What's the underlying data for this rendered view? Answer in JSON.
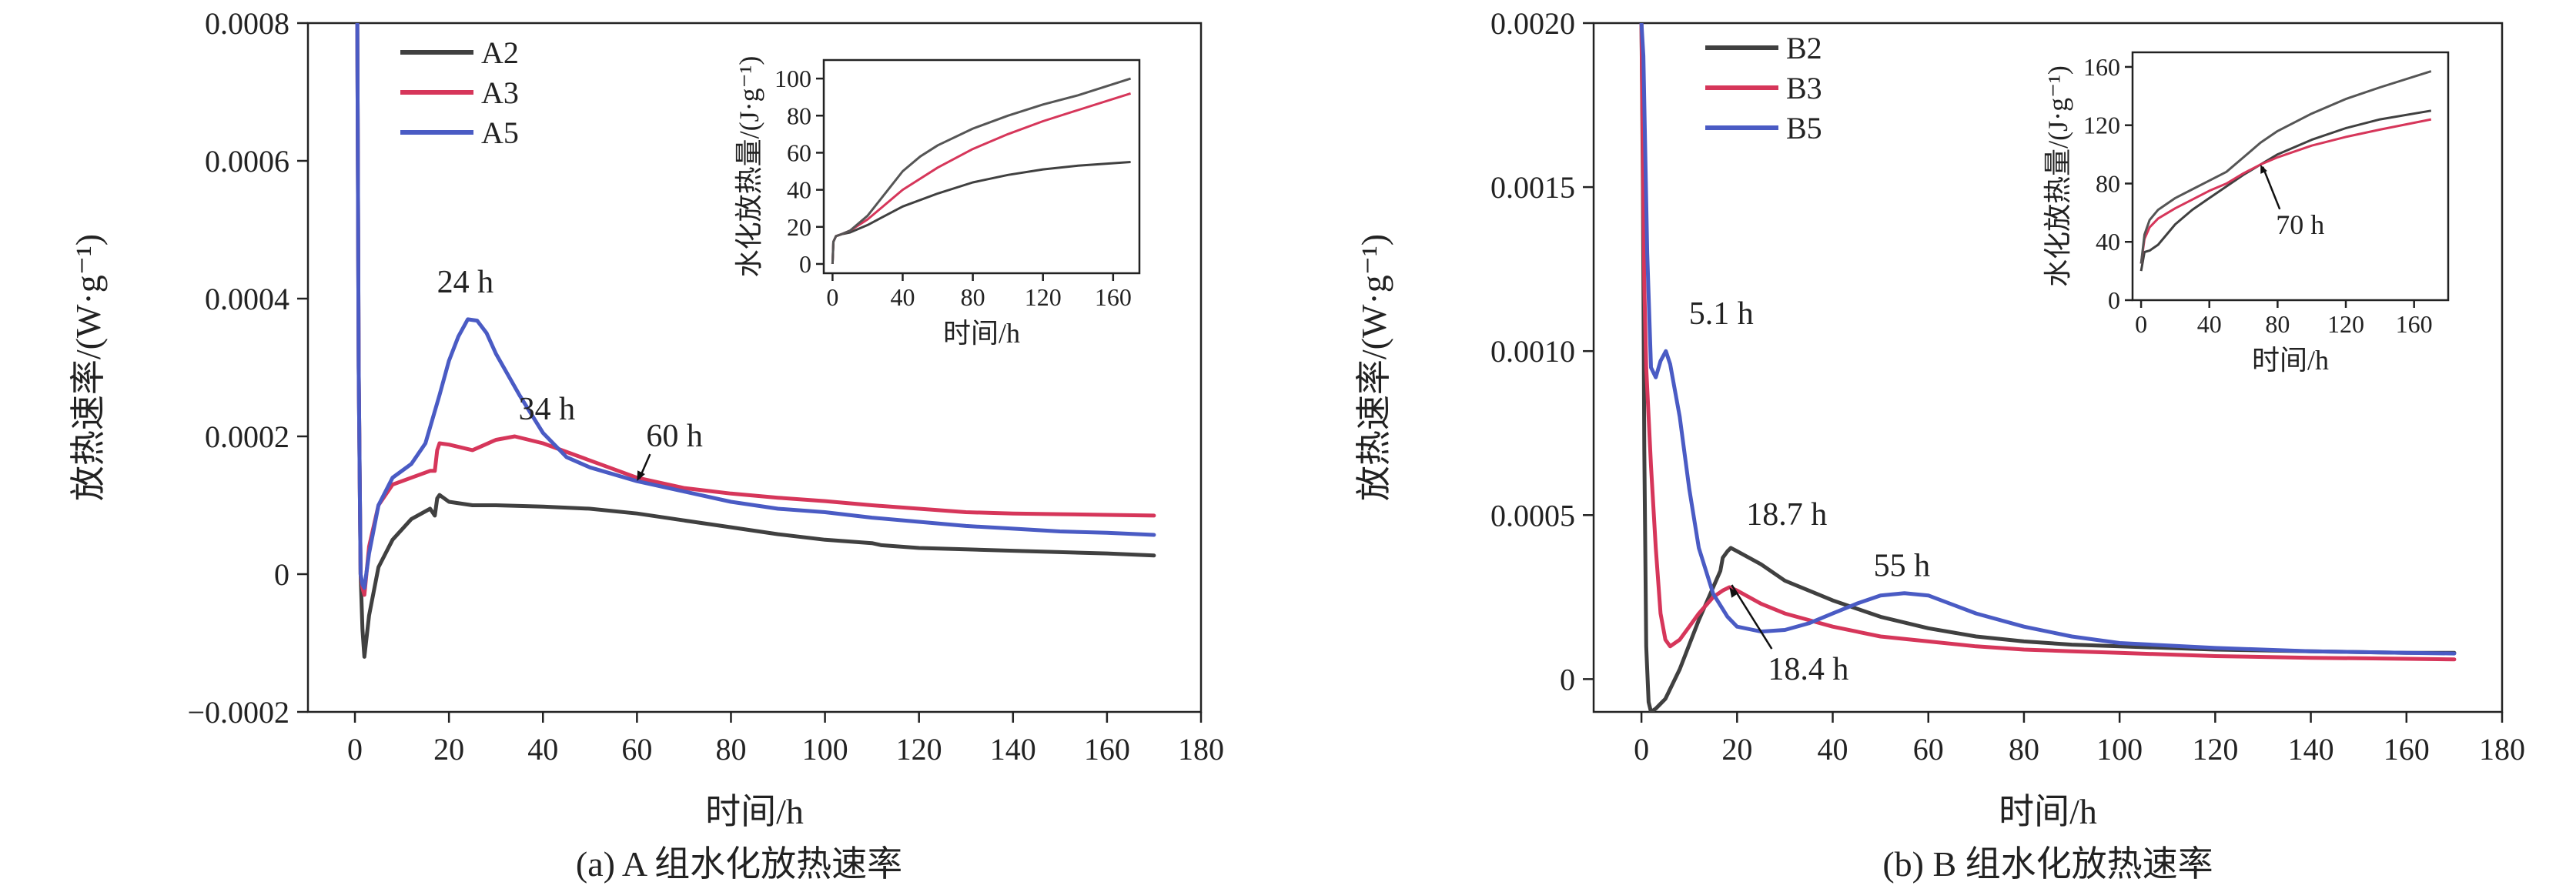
{
  "chart_data": [
    {
      "type": "line",
      "caption": "(a) A 组水化放热速率",
      "xlabel": "时间/h",
      "ylabel": "放热速率/(W·g⁻¹)",
      "xlim": [
        -10,
        180
      ],
      "ylim": [
        -0.0002,
        0.0008
      ],
      "xticks": [
        0,
        20,
        40,
        60,
        80,
        100,
        120,
        140,
        160,
        180
      ],
      "yticks": [
        -0.0002,
        0,
        0.0002,
        0.0004,
        0.0006,
        0.0008
      ],
      "ytick_labels": [
        "−0.0002",
        "0",
        "0.0002",
        "0.0004",
        "0.0006",
        "0.0008"
      ],
      "legend_position": "top-left",
      "series": [
        {
          "name": "A2",
          "color": "#404040",
          "x": [
            0.5,
            0.8,
            1.2,
            1.6,
            2,
            3,
            5,
            8,
            12,
            16,
            17,
            17.5,
            18,
            20,
            25,
            30,
            40,
            50,
            60,
            70,
            80,
            90,
            100,
            110,
            112,
            120,
            130,
            140,
            150,
            160,
            170
          ],
          "y": [
            0.0008,
            0.0003,
            0.0,
            -8e-05,
            -0.00012,
            -6e-05,
            1e-05,
            5e-05,
            8e-05,
            9.5e-05,
            8.5e-05,
            0.00011,
            0.000115,
            0.000105,
            0.0001,
            0.0001,
            9.8e-05,
            9.5e-05,
            8.8e-05,
            7.8e-05,
            6.8e-05,
            5.8e-05,
            5e-05,
            4.5e-05,
            4.2e-05,
            3.8e-05,
            3.6e-05,
            3.4e-05,
            3.2e-05,
            3e-05,
            2.7e-05
          ]
        },
        {
          "name": "A3",
          "color": "#d6365a",
          "x": [
            0.5,
            0.8,
            1.2,
            1.6,
            2,
            3,
            5,
            8,
            12,
            16,
            17,
            17.5,
            18,
            20,
            25,
            30,
            34,
            40,
            50,
            60,
            70,
            80,
            90,
            100,
            110,
            120,
            130,
            140,
            150,
            160,
            170
          ],
          "y": [
            0.0008,
            0.0003,
            0.0,
            -2e-05,
            -3e-05,
            4e-05,
            0.0001,
            0.00013,
            0.00014,
            0.00015,
            0.00015,
            0.00018,
            0.00019,
            0.000188,
            0.00018,
            0.000195,
            0.0002,
            0.00019,
            0.000165,
            0.00014,
            0.000125,
            0.000117,
            0.000111,
            0.000106,
            0.0001,
            9.5e-05,
            9e-05,
            8.8e-05,
            8.7e-05,
            8.6e-05,
            8.5e-05
          ]
        },
        {
          "name": "A5",
          "color": "#4a5bc4",
          "x": [
            0.5,
            0.8,
            1.2,
            1.6,
            2,
            3,
            5,
            8,
            12,
            15,
            18,
            20,
            22,
            24,
            26,
            28,
            30,
            35,
            40,
            45,
            50,
            60,
            70,
            80,
            90,
            100,
            110,
            120,
            130,
            140,
            150,
            160,
            170
          ],
          "y": [
            0.0008,
            0.0003,
            0.0,
            -1.5e-05,
            -2e-05,
            3e-05,
            0.0001,
            0.00014,
            0.00016,
            0.00019,
            0.00026,
            0.00031,
            0.000345,
            0.00037,
            0.000368,
            0.00035,
            0.00032,
            0.00026,
            0.000205,
            0.00017,
            0.000155,
            0.000135,
            0.00012,
            0.000105,
            9.5e-05,
            9e-05,
            8.2e-05,
            7.6e-05,
            7e-05,
            6.6e-05,
            6.2e-05,
            6e-05,
            5.7e-05
          ]
        }
      ],
      "annotations": [
        {
          "text": "24 h",
          "x": 24,
          "y": 0.00037
        },
        {
          "text": "34 h",
          "x": 34,
          "y": 0.0002
        },
        {
          "text": "60 h",
          "x": 60,
          "y": 0.000135
        }
      ],
      "inset": {
        "type": "line",
        "xlabel": "时间/h",
        "ylabel": "水化放热量/(J·g⁻¹)",
        "xlim": [
          -5,
          175
        ],
        "ylim": [
          -5,
          110
        ],
        "xticks": [
          0,
          40,
          80,
          120,
          160
        ],
        "yticks": [
          0,
          20,
          40,
          60,
          80,
          100
        ],
        "series": [
          {
            "name": "A2",
            "color": "#404040",
            "x": [
              0,
              0.5,
              2,
              5,
              10,
              20,
              30,
              40,
              60,
              80,
              100,
              120,
              140,
              170
            ],
            "y": [
              0,
              12,
              15,
              16,
              17,
              21,
              26,
              31,
              38,
              44,
              48,
              51,
              53,
              55
            ]
          },
          {
            "name": "A3",
            "color": "#d6365a",
            "x": [
              0,
              0.5,
              2,
              5,
              10,
              20,
              30,
              40,
              60,
              80,
              100,
              120,
              140,
              170
            ],
            "y": [
              0,
              12,
              15,
              16,
              18,
              24,
              32,
              40,
              52,
              62,
              70,
              77,
              83,
              92
            ]
          },
          {
            "name": "A5",
            "color": "#555555",
            "x": [
              0,
              0.5,
              2,
              5,
              10,
              20,
              30,
              40,
              50,
              60,
              80,
              100,
              120,
              140,
              170
            ],
            "y": [
              0,
              12,
              15,
              16,
              18,
              26,
              38,
              50,
              58,
              64,
              73,
              80,
              86,
              91,
              100
            ]
          }
        ]
      }
    },
    {
      "type": "line",
      "caption": "(b) B 组水化放热速率",
      "xlabel": "时间/h",
      "ylabel": "放热速率/(W·g⁻¹)",
      "xlim": [
        -10,
        180
      ],
      "ylim": [
        -0.0001,
        0.002
      ],
      "xticks": [
        0,
        20,
        40,
        60,
        80,
        100,
        120,
        140,
        160,
        180
      ],
      "yticks": [
        0,
        0.0005,
        0.001,
        0.0015,
        0.002
      ],
      "ytick_labels": [
        "0",
        "0.0005",
        "0.0010",
        "0.0015",
        "0.0020"
      ],
      "legend_position": "top-left",
      "series": [
        {
          "name": "B2",
          "color": "#404040",
          "x": [
            0,
            0.3,
            0.6,
            1,
            1.5,
            2,
            3,
            5,
            8,
            12,
            15,
            16.5,
            17,
            18,
            18.7,
            20,
            25,
            30,
            40,
            50,
            60,
            70,
            80,
            90,
            100,
            120,
            140,
            160,
            170
          ],
          "y": [
            0.002,
            0.0015,
            0.0007,
            0.0001,
            -7e-05,
            -0.0001,
            -9e-05,
            -6e-05,
            3e-05,
            0.00018,
            0.00028,
            0.00033,
            0.00037,
            0.00039,
            0.0004,
            0.00039,
            0.00035,
            0.0003,
            0.00024,
            0.00019,
            0.000155,
            0.00013,
            0.000115,
            0.000105,
            0.0001,
            9e-05,
            8.5e-05,
            8e-05,
            8e-05
          ]
        },
        {
          "name": "B3",
          "color": "#d6365a",
          "x": [
            0,
            0.3,
            0.6,
            1,
            1.5,
            2,
            3,
            4,
            5,
            6,
            8,
            10,
            12,
            15,
            17,
            18.4,
            20,
            25,
            30,
            40,
            50,
            60,
            70,
            80,
            90,
            100,
            120,
            140,
            160,
            170
          ],
          "y": [
            0.002,
            0.0016,
            0.0012,
            0.00095,
            0.0008,
            0.00065,
            0.0004,
            0.0002,
            0.00012,
            0.0001,
            0.00012,
            0.00016,
            0.0002,
            0.00025,
            0.00027,
            0.00028,
            0.00027,
            0.00023,
            0.0002,
            0.00016,
            0.00013,
            0.000115,
            0.0001,
            9e-05,
            8.5e-05,
            8e-05,
            7e-05,
            6.5e-05,
            6.2e-05,
            6e-05
          ]
        },
        {
          "name": "B5",
          "color": "#4a5bc4",
          "x": [
            0,
            0.4,
            0.8,
            1.2,
            2,
            3,
            4,
            5.1,
            6,
            8,
            10,
            12,
            15,
            18,
            20,
            25,
            30,
            35,
            40,
            45,
            50,
            55,
            60,
            70,
            80,
            90,
            100,
            120,
            140,
            160,
            170
          ],
          "y": [
            0.002,
            0.0019,
            0.0016,
            0.0013,
            0.00095,
            0.00092,
            0.00097,
            0.001,
            0.00096,
            0.0008,
            0.00058,
            0.0004,
            0.00026,
            0.00019,
            0.00016,
            0.000145,
            0.00015,
            0.00017,
            0.0002,
            0.00023,
            0.000255,
            0.000262,
            0.000255,
            0.0002,
            0.00016,
            0.00013,
            0.00011,
            9.5e-05,
            8.5e-05,
            8e-05,
            7.8e-05
          ]
        }
      ],
      "annotations": [
        {
          "text": "5.1 h",
          "x": 5.1,
          "y": 0.001
        },
        {
          "text": "18.7 h",
          "x": 18.7,
          "y": 0.0004
        },
        {
          "text": "55 h",
          "x": 55,
          "y": 0.000262
        },
        {
          "text": "18.4 h",
          "x": 18.4,
          "y": 0.00028
        }
      ],
      "inset": {
        "type": "line",
        "xlabel": "时间/h",
        "ylabel": "水化放热量/(J·g⁻¹)",
        "xlim": [
          -5,
          180
        ],
        "ylim": [
          0,
          170
        ],
        "xticks": [
          0,
          40,
          80,
          120,
          160
        ],
        "yticks": [
          0,
          40,
          80,
          120,
          160
        ],
        "annotation": {
          "text": "70 h",
          "x": 70,
          "y": 93
        },
        "series": [
          {
            "name": "B2",
            "color": "#404040",
            "x": [
              0,
              2,
              5,
              10,
              20,
              30,
              40,
              50,
              60,
              70,
              80,
              100,
              120,
              140,
              170
            ],
            "y": [
              20,
              33,
              34,
              38,
              52,
              62,
              70,
              78,
              86,
              93,
              100,
              110,
              118,
              124,
              130
            ]
          },
          {
            "name": "B3",
            "color": "#d6365a",
            "x": [
              0,
              2,
              5,
              10,
              20,
              30,
              40,
              50,
              60,
              70,
              80,
              100,
              120,
              140,
              170
            ],
            "y": [
              25,
              42,
              50,
              56,
              63,
              69,
              75,
              80,
              87,
              93,
              98,
              106,
              112,
              117,
              124
            ]
          },
          {
            "name": "B5",
            "color": "#555555",
            "x": [
              0,
              2,
              5,
              10,
              20,
              30,
              40,
              50,
              60,
              70,
              80,
              100,
              120,
              140,
              170
            ],
            "y": [
              25,
              45,
              55,
              62,
              70,
              76,
              82,
              88,
              98,
              108,
              116,
              128,
              138,
              146,
              157
            ]
          }
        ]
      }
    }
  ]
}
